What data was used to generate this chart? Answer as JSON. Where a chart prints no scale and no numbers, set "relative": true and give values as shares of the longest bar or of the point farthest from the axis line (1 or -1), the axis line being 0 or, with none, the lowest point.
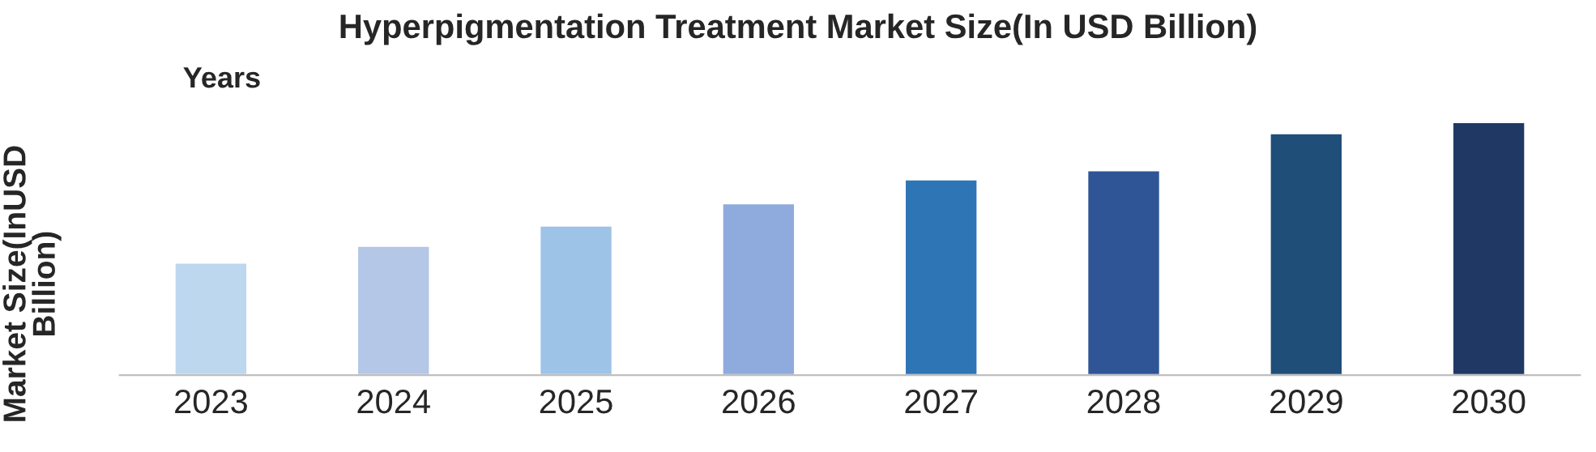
{
  "chart_data": {
    "type": "bar",
    "title": "Hyperpigmentation Treatment Market Size(In USD Billion)",
    "xlabel": "Years",
    "ylabel": "Market Size(InUSD\nBillion)",
    "categories": [
      "2023",
      "2024",
      "2025",
      "2026",
      "2027",
      "2028",
      "2029",
      "2030"
    ],
    "relative": true,
    "values": [
      0.445,
      0.511,
      0.591,
      0.679,
      0.774,
      0.81,
      0.956,
      1
    ],
    "colors": [
      "#bdd7ee",
      "#b4c7e7",
      "#9dc3e6",
      "#8faadc",
      "#2e75b6",
      "#2f5597",
      "#1f4e79",
      "#203864"
    ],
    "grid": false,
    "legend": false
  }
}
